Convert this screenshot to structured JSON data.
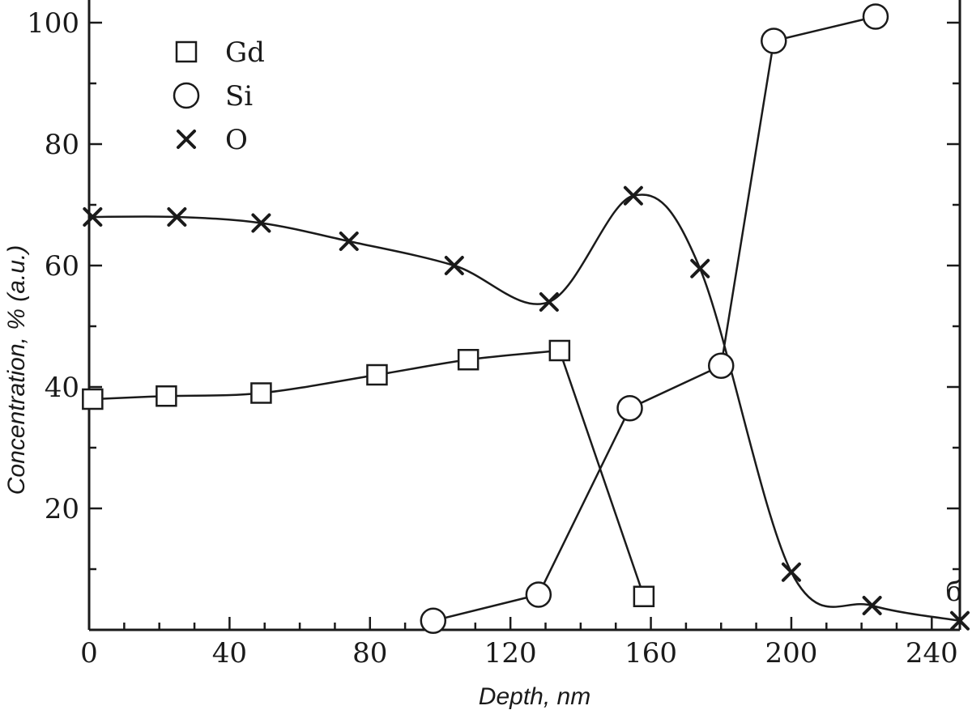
{
  "chart_data": {
    "type": "line",
    "title": "",
    "xlabel": "Depth, nm",
    "ylabel": "Concentration, % (a.u.)",
    "xlim": [
      0,
      248
    ],
    "ylim": [
      0,
      104
    ],
    "xticks": [
      0,
      40,
      80,
      120,
      160,
      200,
      240
    ],
    "yticks": [
      20,
      40,
      60,
      80,
      100
    ],
    "legend_position": "top-left",
    "panel_label": "б",
    "series": [
      {
        "name": "Gd",
        "marker": "square",
        "x": [
          1,
          22,
          49,
          82,
          108,
          134,
          158
        ],
        "y": [
          38,
          38.5,
          39,
          42,
          44.5,
          46,
          5.5
        ]
      },
      {
        "name": "Si",
        "marker": "circle",
        "x": [
          98,
          128,
          154,
          180,
          195,
          224
        ],
        "y": [
          1.5,
          5.8,
          36.5,
          43.5,
          97,
          101
        ]
      },
      {
        "name": "O",
        "marker": "cross",
        "x": [
          1,
          25,
          49,
          74,
          104,
          131,
          155,
          174,
          200,
          223,
          248
        ],
        "y": [
          68,
          68,
          67,
          64,
          60,
          54,
          71.5,
          59.5,
          9.5,
          4,
          1.5
        ]
      }
    ]
  }
}
